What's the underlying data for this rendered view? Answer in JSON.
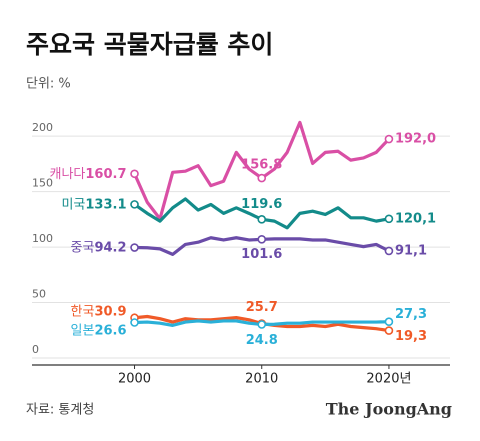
{
  "chart_data": {
    "type": "line",
    "title": "주요국 곡물자급률 추이",
    "subtitle": "단위: %",
    "source": "자료: 통계청",
    "publisher": "The JoongAng",
    "x": [
      2000,
      2001,
      2002,
      2003,
      2004,
      2005,
      2006,
      2007,
      2008,
      2009,
      2010,
      2011,
      2012,
      2013,
      2014,
      2015,
      2016,
      2017,
      2018,
      2019,
      2020
    ],
    "xlim": [
      1996.5,
      2024.8
    ],
    "xticks": [
      2000,
      2010,
      {
        "value": 2020,
        "label": "2020년"
      }
    ],
    "ylim": [
      0,
      220
    ],
    "yticks": [
      0,
      50,
      100,
      150,
      200
    ],
    "grid": true,
    "series": [
      {
        "name": "캐나다",
        "color": "#d94fa5",
        "values": [
          160.7,
          135,
          120,
          162,
          163,
          168,
          150,
          154,
          180,
          165,
          156.8,
          165,
          180,
          207,
          170,
          180,
          181,
          173,
          175,
          180,
          192.0
        ],
        "value_labels": [
          "160.7",
          null,
          null,
          null,
          null,
          null,
          null,
          null,
          null,
          null,
          "156.8",
          null,
          null,
          null,
          null,
          null,
          null,
          null,
          null,
          null,
          "192,0"
        ]
      },
      {
        "name": "미국",
        "color": "#138b8a",
        "values": [
          133.1,
          125,
          118,
          130,
          138,
          128,
          133,
          125,
          130,
          125,
          119.6,
          118,
          112,
          125,
          127,
          124,
          130,
          121,
          121,
          118,
          120.1
        ],
        "value_labels": [
          "133.1",
          null,
          null,
          null,
          null,
          null,
          null,
          null,
          null,
          null,
          "119.6",
          null,
          null,
          null,
          null,
          null,
          null,
          null,
          null,
          null,
          "120,1"
        ]
      },
      {
        "name": "중국",
        "color": "#6a4ca8",
        "values": [
          94.2,
          94,
          93,
          88,
          97,
          99,
          103,
          101,
          103,
          101,
          101.6,
          102,
          102,
          102,
          101,
          101,
          99,
          97,
          95,
          97,
          91.1
        ],
        "value_labels": [
          "94.2",
          null,
          null,
          null,
          null,
          null,
          null,
          null,
          null,
          null,
          "101.6",
          null,
          null,
          null,
          null,
          null,
          null,
          null,
          null,
          null,
          "91,1"
        ]
      },
      {
        "name": "한국",
        "color": "#f05a28",
        "values": [
          30.9,
          32,
          30,
          27,
          30,
          29,
          29,
          30,
          31,
          29,
          25.7,
          24,
          23,
          23,
          24,
          23,
          25,
          23,
          22,
          21,
          19.3
        ],
        "value_labels": [
          "30.9",
          null,
          null,
          null,
          null,
          null,
          null,
          null,
          null,
          null,
          "25.7",
          null,
          null,
          null,
          null,
          null,
          null,
          null,
          null,
          null,
          "19,3"
        ]
      },
      {
        "name": "일본",
        "color": "#2ab0d8",
        "values": [
          26.6,
          27,
          26,
          24,
          27,
          28,
          27,
          28,
          28,
          26,
          24.8,
          25,
          26,
          26,
          27,
          27,
          27,
          27,
          27,
          27,
          27.3
        ],
        "value_labels": [
          "26.6",
          null,
          null,
          null,
          null,
          null,
          null,
          null,
          null,
          null,
          "24.8",
          null,
          null,
          null,
          null,
          null,
          null,
          null,
          null,
          null,
          "27,3"
        ]
      }
    ]
  }
}
